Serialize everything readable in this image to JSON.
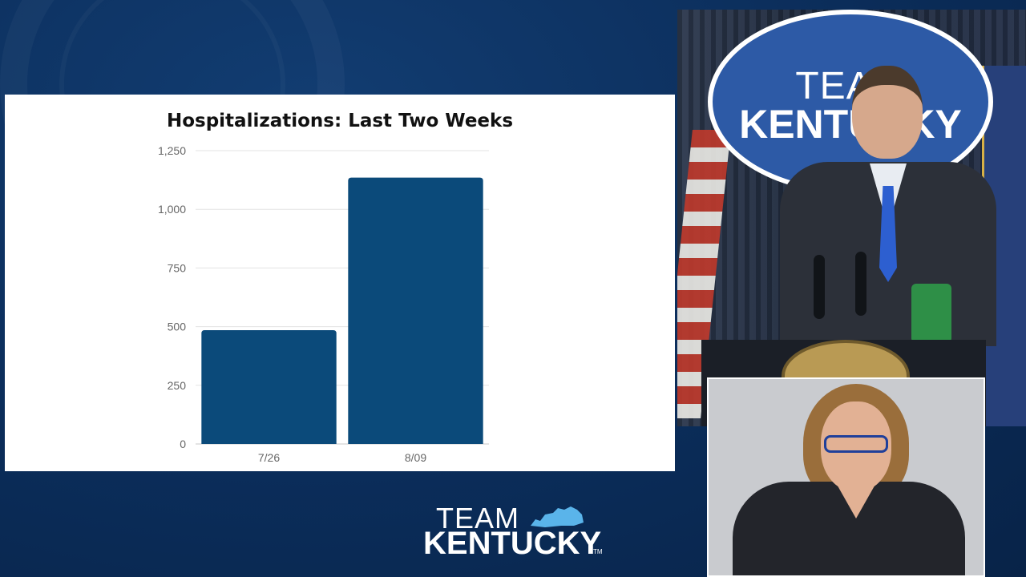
{
  "chart_data": {
    "type": "bar",
    "title": "Hospitalizations: Last Two Weeks",
    "categories": [
      "7/26",
      "8/09"
    ],
    "values": [
      485,
      1135
    ],
    "ylim": [
      0,
      1250
    ],
    "yticks": [
      0,
      250,
      500,
      750,
      1000,
      1250
    ],
    "ytick_labels": [
      "0",
      "250",
      "500",
      "750",
      "1,000",
      "1,250"
    ],
    "xlabel": "",
    "ylabel": "",
    "grid": true,
    "bar_color": "#0b4a7a"
  },
  "logo": {
    "team": "TEAM",
    "kentucky": "KENTUCKY",
    "tm": "TM",
    "accent_color": "#5ab4ea"
  },
  "video": {
    "oval_team": "TEAM",
    "oval_kentucky": "KENTUCKY"
  }
}
